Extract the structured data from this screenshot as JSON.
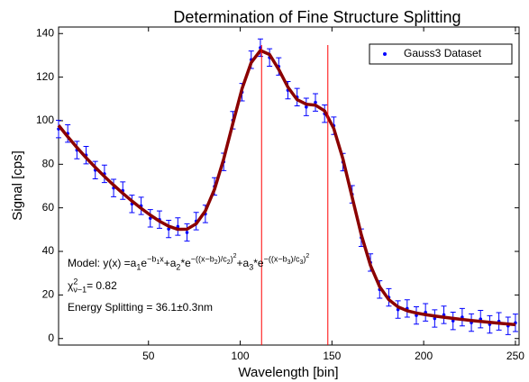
{
  "chart_data": {
    "type": "scatter",
    "title": "Determination of Fine Structure Splitting",
    "xlabel": "Wavelength [bin]",
    "ylabel": "Signal [cps]",
    "x": [
      1,
      6,
      11,
      16,
      21,
      26,
      31,
      36,
      41,
      46,
      51,
      56,
      61,
      66,
      71,
      76,
      81,
      86,
      91,
      96,
      101,
      106,
      111,
      116,
      121,
      126,
      131,
      136,
      141,
      146,
      151,
      156,
      161,
      166,
      171,
      176,
      181,
      186,
      191,
      196,
      201,
      206,
      211,
      216,
      221,
      226,
      231,
      236,
      241,
      246,
      250
    ],
    "series": [
      {
        "name": "Gauss3 Dataset",
        "color": "#0000ff",
        "error": 4,
        "values": [
          96.2,
          94.1,
          86.5,
          84.2,
          77.3,
          75.6,
          69.1,
          67.9,
          61.8,
          60.9,
          55.2,
          54.6,
          50.3,
          51.4,
          48.7,
          53.9,
          57.2,
          69.8,
          81.1,
          100.2,
          113.1,
          128.0,
          133.5,
          129.0,
          124.9,
          114.0,
          110.8,
          106.3,
          108.4,
          103.2,
          97.7,
          81.0,
          66.2,
          46.3,
          34.9,
          22.5,
          18.9,
          13.3,
          13.8,
          10.6,
          12.0,
          9.2,
          10.9,
          8.1,
          9.8,
          7.3,
          8.9,
          6.5,
          7.9,
          5.8,
          7.2
        ]
      },
      {
        "type": "line",
        "color": "#8b0000",
        "values": [
          97.86,
          92.64,
          87.69,
          83.01,
          78.58,
          74.39,
          70.42,
          66.66,
          63.11,
          59.77,
          56.66,
          53.87,
          51.57,
          50.13,
          50.21,
          52.68,
          58.55,
          68.52,
          82.42,
          98.77,
          114.68,
          126.71,
          132.23,
          130.39,
          123.52,
          115.39,
          109.66,
          107.56,
          107.14,
          104.51,
          96.42,
          82.39,
          64.91,
          47.64,
          33.56,
          23.79,
          17.83,
          14.54,
          12.76,
          11.71,
          10.96,
          10.34,
          9.78,
          9.25,
          8.76,
          8.29,
          7.85,
          7.43,
          7.03,
          6.66,
          6.37
        ]
      }
    ],
    "vlines": [
      111.64,
      147.76
    ],
    "vline_color": "#ff0000",
    "xlim": [
      1,
      252
    ],
    "ylim": [
      -3,
      143
    ],
    "xticks": [
      50,
      100,
      150,
      200,
      250
    ],
    "yticks": [
      0,
      20,
      40,
      60,
      80,
      100,
      120,
      140
    ],
    "legend": "upper right",
    "annotations": [
      [
        {
          "t": "Model: y(x) =a",
          "p": "base"
        },
        {
          "t": "1",
          "p": "sub"
        },
        {
          "t": "e",
          "p": "base"
        },
        {
          "t": "−b",
          "p": "sup"
        },
        {
          "t": "1",
          "p": "supsub"
        },
        {
          "t": "x",
          "p": "sup"
        },
        {
          "t": "+a",
          "p": "base"
        },
        {
          "t": "2",
          "p": "sub"
        },
        {
          "t": "*e",
          "p": "base"
        },
        {
          "t": "−((x−b",
          "p": "sup"
        },
        {
          "t": "2",
          "p": "supsub"
        },
        {
          "t": ")/c",
          "p": "sup"
        },
        {
          "t": "2",
          "p": "supsub"
        },
        {
          "t": ")",
          "p": "sup"
        },
        {
          "t": "2",
          "p": "supsup"
        },
        {
          "t": "+a",
          "p": "base"
        },
        {
          "t": "3",
          "p": "sub"
        },
        {
          "t": "*e",
          "p": "base"
        },
        {
          "t": "−((x−b",
          "p": "sup"
        },
        {
          "t": "3",
          "p": "supsub"
        },
        {
          "t": ")/c",
          "p": "sup"
        },
        {
          "t": "3",
          "p": "supsub"
        },
        {
          "t": ")",
          "p": "sup"
        },
        {
          "t": "2",
          "p": "supsup"
        }
      ],
      [
        {
          "t": "χ",
          "p": "base"
        },
        {
          "t": "2",
          "p": "supstack"
        },
        {
          "t": "ν−1",
          "p": "sub"
        },
        {
          "t": " = 0.82",
          "p": "base"
        }
      ],
      [
        {
          "t": "Energy Splitting = 36.1±0.3nm",
          "p": "base"
        }
      ]
    ]
  }
}
